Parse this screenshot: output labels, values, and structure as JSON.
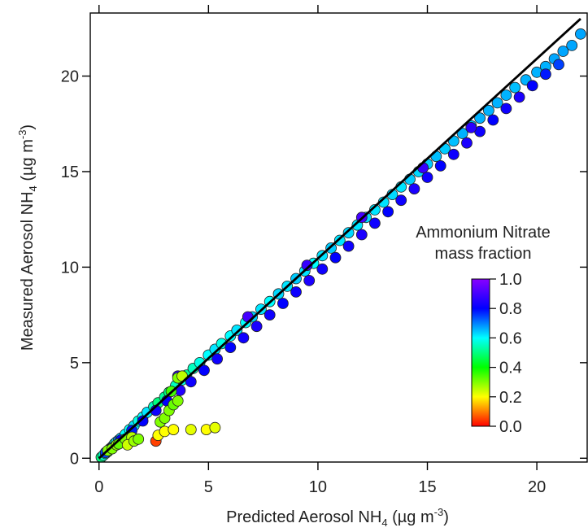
{
  "chart_data": {
    "type": "scatter",
    "xlabel": {
      "main": "Predicted Aerosol NH",
      "sub": "4",
      "unit": " (µg m",
      "sup": "-3",
      "close": ")"
    },
    "ylabel": {
      "main": "Measured Aerosol NH",
      "sub": "4",
      "unit": " (µg m",
      "sup": "-3",
      "close": ")"
    },
    "xlim": [
      -0.4,
      22.3
    ],
    "ylim": [
      -0.2,
      23.3
    ],
    "xticks": [
      0,
      5,
      10,
      15,
      20
    ],
    "yticks": [
      0,
      5,
      10,
      15,
      20
    ],
    "grid": false,
    "one_to_one_line": {
      "x": [
        0,
        22
      ],
      "y": [
        0,
        23
      ]
    },
    "colorbar": {
      "title": [
        "Ammonium Nitrate",
        "mass fraction"
      ],
      "ticks": [
        "1.0",
        "0.8",
        "0.6",
        "0.4",
        "0.2",
        "0.0"
      ],
      "range": [
        0,
        1
      ],
      "colormap": [
        "#ff0000",
        "#ffff00",
        "#00ff00",
        "#00ffff",
        "#0000ff",
        "#8800ff"
      ]
    },
    "series": [
      {
        "points": [
          [
            0.1,
            0.05,
            0.5
          ],
          [
            0.2,
            0.15,
            0.55
          ],
          [
            0.3,
            0.25,
            0.6
          ],
          [
            0.4,
            0.35,
            0.5
          ],
          [
            0.5,
            0.5,
            0.6
          ],
          [
            0.6,
            0.6,
            0.65
          ],
          [
            0.7,
            0.75,
            0.55
          ],
          [
            0.8,
            0.85,
            0.6
          ],
          [
            0.9,
            0.95,
            0.7
          ],
          [
            1.0,
            1.05,
            0.65
          ],
          [
            1.2,
            1.25,
            0.6
          ],
          [
            1.4,
            1.5,
            0.6
          ],
          [
            1.6,
            1.7,
            0.62
          ],
          [
            1.8,
            1.95,
            0.58
          ],
          [
            2.0,
            2.15,
            0.6
          ],
          [
            2.2,
            2.4,
            0.62
          ],
          [
            2.5,
            2.7,
            0.55
          ],
          [
            2.7,
            2.9,
            0.5
          ],
          [
            3.0,
            3.2,
            0.52
          ],
          [
            3.2,
            3.45,
            0.5
          ],
          [
            3.5,
            3.8,
            0.55
          ],
          [
            3.8,
            4.1,
            0.58
          ],
          [
            4.0,
            4.35,
            0.52
          ],
          [
            4.3,
            4.7,
            0.55
          ],
          [
            4.6,
            5.0,
            0.58
          ],
          [
            5.0,
            5.4,
            0.6
          ],
          [
            5.3,
            5.7,
            0.62
          ],
          [
            5.6,
            6.0,
            0.58
          ],
          [
            6.0,
            6.4,
            0.6
          ],
          [
            6.3,
            6.7,
            0.62
          ],
          [
            6.7,
            7.1,
            0.6
          ],
          [
            7.0,
            7.4,
            0.64
          ],
          [
            7.4,
            7.8,
            0.62
          ],
          [
            7.8,
            8.2,
            0.6
          ],
          [
            8.2,
            8.6,
            0.63
          ],
          [
            8.6,
            9.0,
            0.62
          ],
          [
            9.0,
            9.4,
            0.64
          ],
          [
            9.4,
            9.8,
            0.62
          ],
          [
            9.8,
            10.2,
            0.6
          ],
          [
            10.2,
            10.6,
            0.62
          ],
          [
            10.6,
            11.0,
            0.64
          ],
          [
            11.0,
            11.4,
            0.62
          ],
          [
            11.4,
            11.8,
            0.63
          ],
          [
            11.8,
            12.2,
            0.62
          ],
          [
            12.2,
            12.6,
            0.63
          ],
          [
            12.6,
            13.0,
            0.62
          ],
          [
            13.0,
            13.4,
            0.62
          ],
          [
            13.4,
            13.8,
            0.63
          ],
          [
            13.8,
            14.2,
            0.62
          ],
          [
            14.2,
            14.6,
            0.64
          ],
          [
            14.6,
            15.0,
            0.63
          ],
          [
            15.0,
            15.4,
            0.64
          ],
          [
            15.4,
            15.8,
            0.65
          ],
          [
            15.8,
            16.2,
            0.64
          ],
          [
            16.2,
            16.6,
            0.65
          ],
          [
            16.6,
            17.0,
            0.66
          ],
          [
            17.0,
            17.4,
            0.65
          ],
          [
            17.4,
            17.8,
            0.66
          ],
          [
            17.8,
            18.2,
            0.66
          ],
          [
            18.2,
            18.6,
            0.66
          ],
          [
            18.6,
            19.0,
            0.66
          ],
          [
            19.0,
            19.4,
            0.65
          ],
          [
            19.5,
            19.8,
            0.66
          ],
          [
            20.0,
            20.2,
            0.66
          ],
          [
            20.4,
            20.5,
            0.66
          ],
          [
            20.8,
            20.9,
            0.67
          ],
          [
            21.2,
            21.3,
            0.67
          ],
          [
            21.6,
            21.6,
            0.67
          ],
          [
            22.0,
            22.2,
            0.67
          ],
          [
            0.3,
            0.3,
            0.75
          ],
          [
            0.6,
            0.55,
            0.78
          ],
          [
            1.0,
            0.95,
            0.8
          ],
          [
            1.5,
            1.45,
            0.78
          ],
          [
            2.0,
            1.95,
            0.8
          ],
          [
            2.6,
            2.5,
            0.82
          ],
          [
            3.1,
            3.0,
            0.8
          ],
          [
            3.7,
            3.55,
            0.85
          ],
          [
            4.2,
            4.0,
            0.82
          ],
          [
            4.8,
            4.6,
            0.8
          ],
          [
            5.4,
            5.2,
            0.82
          ],
          [
            6.0,
            5.8,
            0.8
          ],
          [
            6.6,
            6.3,
            0.82
          ],
          [
            7.2,
            6.9,
            0.84
          ],
          [
            7.8,
            7.5,
            0.82
          ],
          [
            8.4,
            8.1,
            0.8
          ],
          [
            9.0,
            8.7,
            0.82
          ],
          [
            9.6,
            9.3,
            0.84
          ],
          [
            10.2,
            9.9,
            0.82
          ],
          [
            10.8,
            10.5,
            0.8
          ],
          [
            11.4,
            11.1,
            0.82
          ],
          [
            12.0,
            11.7,
            0.84
          ],
          [
            12.6,
            12.3,
            0.82
          ],
          [
            13.2,
            12.9,
            0.8
          ],
          [
            13.8,
            13.5,
            0.82
          ],
          [
            14.4,
            14.1,
            0.84
          ],
          [
            15.0,
            14.7,
            0.82
          ],
          [
            15.6,
            15.3,
            0.8
          ],
          [
            16.2,
            15.9,
            0.82
          ],
          [
            16.8,
            16.5,
            0.84
          ],
          [
            17.4,
            17.1,
            0.82
          ],
          [
            18.0,
            17.7,
            0.8
          ],
          [
            18.6,
            18.3,
            0.82
          ],
          [
            19.2,
            18.9,
            0.84
          ],
          [
            19.8,
            19.5,
            0.8
          ],
          [
            20.4,
            20.1,
            0.78
          ],
          [
            21.0,
            20.6,
            0.75
          ],
          [
            3.6,
            4.3,
            0.88
          ],
          [
            6.8,
            7.4,
            0.9
          ],
          [
            9.5,
            10.1,
            0.88
          ],
          [
            12.0,
            12.6,
            0.9
          ],
          [
            14.8,
            15.2,
            0.88
          ],
          [
            17.0,
            17.3,
            0.86
          ],
          [
            0.4,
            0.4,
            0.3
          ],
          [
            0.6,
            0.5,
            0.3
          ],
          [
            0.8,
            0.7,
            0.28
          ],
          [
            0.9,
            0.75,
            0.32
          ],
          [
            1.2,
            1.0,
            0.3
          ],
          [
            1.5,
            1.1,
            0.26
          ],
          [
            1.3,
            0.7,
            0.24
          ],
          [
            1.6,
            0.9,
            0.28
          ],
          [
            1.8,
            1.0,
            0.3
          ],
          [
            2.6,
            0.9,
            0.05
          ],
          [
            2.7,
            1.2,
            0.2
          ],
          [
            3.0,
            1.4,
            0.2
          ],
          [
            3.4,
            1.5,
            0.2
          ],
          [
            4.2,
            1.5,
            0.22
          ],
          [
            4.9,
            1.5,
            0.2
          ],
          [
            5.3,
            1.6,
            0.22
          ],
          [
            2.8,
            1.9,
            0.3
          ],
          [
            3.0,
            2.1,
            0.3
          ],
          [
            3.2,
            2.5,
            0.3
          ],
          [
            3.4,
            2.8,
            0.32
          ],
          [
            3.6,
            3.0,
            0.3
          ],
          [
            3.3,
            3.5,
            0.35
          ],
          [
            3.6,
            4.2,
            0.3
          ],
          [
            3.8,
            4.3,
            0.25
          ]
        ]
      }
    ]
  }
}
